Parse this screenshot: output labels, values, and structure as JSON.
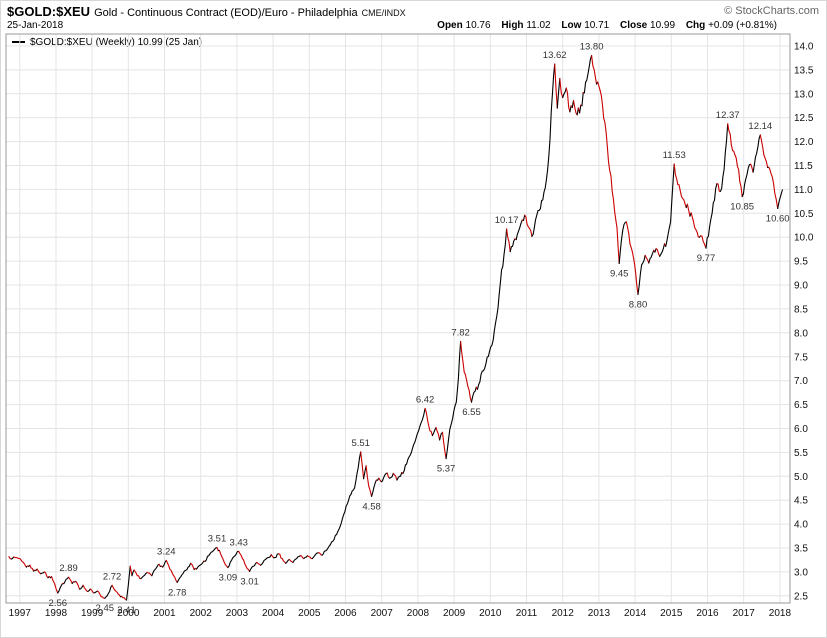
{
  "header": {
    "symbol": "$GOLD:$XEU",
    "description": "Gold - Continuous Contract (EOD)/Euro - Philadelphia",
    "exchange": "CME/INDX",
    "copyright": "© StockCharts.com",
    "date": "25-Jan-2018",
    "quote": {
      "open_label": "Open",
      "open": "10.76",
      "high_label": "High",
      "high": "11.02",
      "low_label": "Low",
      "low": "10.71",
      "close_label": "Close",
      "close": "10.99",
      "chg_label": "Chg",
      "chg": "+0.09 (+0.81%)"
    }
  },
  "legend": {
    "symbol_text": "$GOLD:$XEU (Weekly)",
    "value_text": "10.99 (25 Jan)"
  },
  "chart_data": {
    "type": "line",
    "title": "$GOLD:$XEU (Weekly) — Gold Continuous Contract (EOD) / Euro",
    "xlabel": "",
    "ylabel": "",
    "grid": true,
    "legend_position": "top-left",
    "x_domain": [
      1996.62,
      2018.28
    ],
    "y_domain": [
      2.35,
      14.25
    ],
    "x_ticks": [
      1997,
      1998,
      1999,
      2000,
      2001,
      2002,
      2003,
      2004,
      2005,
      2006,
      2007,
      2008,
      2009,
      2010,
      2011,
      2012,
      2013,
      2014,
      2015,
      2016,
      2017,
      2018
    ],
    "y_ticks": [
      14.0,
      13.5,
      13.0,
      12.5,
      12.0,
      11.5,
      11.0,
      10.5,
      10.0,
      9.5,
      9.0,
      8.5,
      8.0,
      7.5,
      7.0,
      6.5,
      6.0,
      5.5,
      5.0,
      4.5,
      4.0,
      3.5,
      3.0,
      2.5
    ],
    "colors": {
      "up": "#000000",
      "down": "#cc0000",
      "grid": "#e4e4e4",
      "border": "#999999",
      "annotation": "#333333",
      "axis_text": "#111111"
    },
    "series": [
      {
        "name": "$GOLD:$XEU",
        "points": [
          [
            1996.7,
            3.32
          ],
          [
            1996.8,
            3.28
          ],
          [
            1996.9,
            3.3
          ],
          [
            1997.0,
            3.28
          ],
          [
            1997.1,
            3.2
          ],
          [
            1997.18,
            3.1
          ],
          [
            1997.28,
            3.14
          ],
          [
            1997.38,
            3.02
          ],
          [
            1997.48,
            3.06
          ],
          [
            1997.58,
            2.96
          ],
          [
            1997.68,
            3.0
          ],
          [
            1997.78,
            2.88
          ],
          [
            1997.88,
            2.9
          ],
          [
            1997.96,
            2.76
          ],
          [
            1998.05,
            2.56
          ],
          [
            1998.15,
            2.72
          ],
          [
            1998.25,
            2.8
          ],
          [
            1998.35,
            2.89
          ],
          [
            1998.45,
            2.76
          ],
          [
            1998.55,
            2.8
          ],
          [
            1998.65,
            2.64
          ],
          [
            1998.75,
            2.72
          ],
          [
            1998.85,
            2.6
          ],
          [
            1998.95,
            2.64
          ],
          [
            1999.05,
            2.56
          ],
          [
            1999.15,
            2.6
          ],
          [
            1999.25,
            2.48
          ],
          [
            1999.35,
            2.45
          ],
          [
            1999.45,
            2.55
          ],
          [
            1999.55,
            2.72
          ],
          [
            1999.65,
            2.6
          ],
          [
            1999.75,
            2.52
          ],
          [
            1999.85,
            2.46
          ],
          [
            1999.95,
            2.41
          ],
          [
            2000.0,
            2.72
          ],
          [
            2000.05,
            3.12
          ],
          [
            2000.1,
            2.92
          ],
          [
            2000.16,
            3.04
          ],
          [
            2000.25,
            2.92
          ],
          [
            2000.35,
            2.86
          ],
          [
            2000.45,
            2.93
          ],
          [
            2000.55,
            2.98
          ],
          [
            2000.65,
            2.92
          ],
          [
            2000.75,
            3.06
          ],
          [
            2000.85,
            3.16
          ],
          [
            2000.95,
            3.1
          ],
          [
            2001.05,
            3.24
          ],
          [
            2001.15,
            3.05
          ],
          [
            2001.25,
            2.92
          ],
          [
            2001.35,
            2.78
          ],
          [
            2001.45,
            2.9
          ],
          [
            2001.55,
            3.02
          ],
          [
            2001.65,
            3.1
          ],
          [
            2001.72,
            3.18
          ],
          [
            2001.82,
            3.05
          ],
          [
            2001.92,
            3.1
          ],
          [
            2002.02,
            3.16
          ],
          [
            2002.12,
            3.22
          ],
          [
            2002.22,
            3.34
          ],
          [
            2002.32,
            3.42
          ],
          [
            2002.45,
            3.51
          ],
          [
            2002.55,
            3.38
          ],
          [
            2002.65,
            3.2
          ],
          [
            2002.75,
            3.09
          ],
          [
            2002.85,
            3.24
          ],
          [
            2002.95,
            3.34
          ],
          [
            2003.05,
            3.43
          ],
          [
            2003.15,
            3.28
          ],
          [
            2003.25,
            3.12
          ],
          [
            2003.35,
            3.01
          ],
          [
            2003.45,
            3.12
          ],
          [
            2003.55,
            3.2
          ],
          [
            2003.65,
            3.14
          ],
          [
            2003.75,
            3.24
          ],
          [
            2003.85,
            3.3
          ],
          [
            2003.95,
            3.36
          ],
          [
            2004.05,
            3.3
          ],
          [
            2004.15,
            3.38
          ],
          [
            2004.25,
            3.28
          ],
          [
            2004.35,
            3.18
          ],
          [
            2004.45,
            3.26
          ],
          [
            2004.55,
            3.2
          ],
          [
            2004.65,
            3.28
          ],
          [
            2004.75,
            3.34
          ],
          [
            2004.85,
            3.28
          ],
          [
            2004.95,
            3.34
          ],
          [
            2005.05,
            3.28
          ],
          [
            2005.15,
            3.34
          ],
          [
            2005.25,
            3.4
          ],
          [
            2005.35,
            3.35
          ],
          [
            2005.45,
            3.44
          ],
          [
            2005.55,
            3.54
          ],
          [
            2005.65,
            3.64
          ],
          [
            2005.75,
            3.78
          ],
          [
            2005.85,
            3.95
          ],
          [
            2005.95,
            4.2
          ],
          [
            2006.05,
            4.42
          ],
          [
            2006.15,
            4.62
          ],
          [
            2006.25,
            4.76
          ],
          [
            2006.35,
            5.18
          ],
          [
            2006.42,
            5.51
          ],
          [
            2006.5,
            4.95
          ],
          [
            2006.57,
            5.22
          ],
          [
            2006.64,
            4.8
          ],
          [
            2006.72,
            4.58
          ],
          [
            2006.82,
            4.86
          ],
          [
            2006.92,
            4.96
          ],
          [
            2007.02,
            4.9
          ],
          [
            2007.12,
            5.06
          ],
          [
            2007.22,
            4.96
          ],
          [
            2007.32,
            5.06
          ],
          [
            2007.42,
            4.92
          ],
          [
            2007.52,
            5.0
          ],
          [
            2007.62,
            5.12
          ],
          [
            2007.72,
            5.35
          ],
          [
            2007.82,
            5.5
          ],
          [
            2007.92,
            5.72
          ],
          [
            2008.02,
            5.95
          ],
          [
            2008.12,
            6.18
          ],
          [
            2008.2,
            6.42
          ],
          [
            2008.3,
            6.05
          ],
          [
            2008.4,
            5.85
          ],
          [
            2008.5,
            6.02
          ],
          [
            2008.6,
            5.76
          ],
          [
            2008.68,
            5.92
          ],
          [
            2008.78,
            5.37
          ],
          [
            2008.88,
            5.98
          ],
          [
            2008.96,
            6.22
          ],
          [
            2009.06,
            6.55
          ],
          [
            2009.12,
            7.05
          ],
          [
            2009.18,
            7.82
          ],
          [
            2009.28,
            7.18
          ],
          [
            2009.38,
            6.88
          ],
          [
            2009.48,
            6.55
          ],
          [
            2009.58,
            6.78
          ],
          [
            2009.68,
            6.92
          ],
          [
            2009.78,
            7.2
          ],
          [
            2009.88,
            7.36
          ],
          [
            2009.98,
            7.62
          ],
          [
            2010.08,
            7.85
          ],
          [
            2010.18,
            8.35
          ],
          [
            2010.28,
            9.05
          ],
          [
            2010.38,
            9.65
          ],
          [
            2010.45,
            10.17
          ],
          [
            2010.55,
            9.7
          ],
          [
            2010.65,
            9.92
          ],
          [
            2010.75,
            10.06
          ],
          [
            2010.85,
            10.3
          ],
          [
            2010.95,
            10.46
          ],
          [
            2011.05,
            10.22
          ],
          [
            2011.15,
            10.02
          ],
          [
            2011.25,
            10.36
          ],
          [
            2011.35,
            10.56
          ],
          [
            2011.45,
            10.78
          ],
          [
            2011.55,
            11.2
          ],
          [
            2011.65,
            12.05
          ],
          [
            2011.72,
            13.05
          ],
          [
            2011.78,
            13.62
          ],
          [
            2011.85,
            12.7
          ],
          [
            2011.92,
            13.32
          ],
          [
            2012.0,
            12.92
          ],
          [
            2012.1,
            13.12
          ],
          [
            2012.2,
            12.62
          ],
          [
            2012.3,
            12.86
          ],
          [
            2012.4,
            12.56
          ],
          [
            2012.5,
            12.76
          ],
          [
            2012.6,
            13.02
          ],
          [
            2012.7,
            13.42
          ],
          [
            2012.8,
            13.8
          ],
          [
            2012.9,
            13.36
          ],
          [
            2013.0,
            13.16
          ],
          [
            2013.1,
            12.76
          ],
          [
            2013.2,
            12.2
          ],
          [
            2013.3,
            11.4
          ],
          [
            2013.4,
            10.8
          ],
          [
            2013.5,
            10.2
          ],
          [
            2013.56,
            9.45
          ],
          [
            2013.66,
            10.15
          ],
          [
            2013.76,
            10.32
          ],
          [
            2013.86,
            9.86
          ],
          [
            2013.96,
            9.56
          ],
          [
            2014.02,
            9.22
          ],
          [
            2014.08,
            8.8
          ],
          [
            2014.18,
            9.42
          ],
          [
            2014.28,
            9.62
          ],
          [
            2014.38,
            9.46
          ],
          [
            2014.48,
            9.66
          ],
          [
            2014.58,
            9.76
          ],
          [
            2014.68,
            9.6
          ],
          [
            2014.78,
            9.76
          ],
          [
            2014.88,
            9.92
          ],
          [
            2014.98,
            10.32
          ],
          [
            2015.08,
            11.53
          ],
          [
            2015.18,
            11.1
          ],
          [
            2015.28,
            10.86
          ],
          [
            2015.38,
            10.7
          ],
          [
            2015.48,
            10.56
          ],
          [
            2015.58,
            10.42
          ],
          [
            2015.68,
            10.16
          ],
          [
            2015.78,
            10.0
          ],
          [
            2015.88,
            9.92
          ],
          [
            2015.96,
            9.77
          ],
          [
            2016.06,
            10.22
          ],
          [
            2016.16,
            10.72
          ],
          [
            2016.26,
            11.12
          ],
          [
            2016.36,
            10.96
          ],
          [
            2016.46,
            11.42
          ],
          [
            2016.56,
            12.37
          ],
          [
            2016.66,
            11.92
          ],
          [
            2016.76,
            11.72
          ],
          [
            2016.86,
            11.42
          ],
          [
            2016.96,
            10.85
          ],
          [
            2017.06,
            11.22
          ],
          [
            2017.16,
            11.52
          ],
          [
            2017.26,
            11.36
          ],
          [
            2017.36,
            11.76
          ],
          [
            2017.46,
            12.14
          ],
          [
            2017.56,
            11.72
          ],
          [
            2017.66,
            11.46
          ],
          [
            2017.76,
            11.32
          ],
          [
            2017.86,
            10.92
          ],
          [
            2017.94,
            10.6
          ],
          [
            2018.02,
            10.86
          ],
          [
            2018.07,
            10.99
          ]
        ]
      }
    ],
    "annotations": [
      {
        "x": 1998.05,
        "value": 2.56,
        "label": "2.56",
        "pos": "below"
      },
      {
        "x": 1998.35,
        "value": 2.89,
        "label": "2.89",
        "pos": "above"
      },
      {
        "x": 1999.35,
        "value": 2.45,
        "label": "2.45",
        "pos": "below"
      },
      {
        "x": 1999.55,
        "value": 2.72,
        "label": "2.72",
        "pos": "above"
      },
      {
        "x": 1999.95,
        "value": 2.41,
        "label": "2.41",
        "pos": "below"
      },
      {
        "x": 2001.05,
        "value": 3.24,
        "label": "3.24",
        "pos": "above"
      },
      {
        "x": 2001.35,
        "value": 2.78,
        "label": "2.78",
        "pos": "below"
      },
      {
        "x": 2002.45,
        "value": 3.51,
        "label": "3.51",
        "pos": "above"
      },
      {
        "x": 2002.75,
        "value": 3.09,
        "label": "3.09",
        "pos": "below"
      },
      {
        "x": 2003.05,
        "value": 3.43,
        "label": "3.43",
        "pos": "above"
      },
      {
        "x": 2003.35,
        "value": 3.01,
        "label": "3.01",
        "pos": "below"
      },
      {
        "x": 2006.42,
        "value": 5.51,
        "label": "5.51",
        "pos": "above"
      },
      {
        "x": 2006.72,
        "value": 4.58,
        "label": "4.58",
        "pos": "below"
      },
      {
        "x": 2008.2,
        "value": 6.42,
        "label": "6.42",
        "pos": "above"
      },
      {
        "x": 2008.78,
        "value": 5.37,
        "label": "5.37",
        "pos": "below"
      },
      {
        "x": 2009.18,
        "value": 7.82,
        "label": "7.82",
        "pos": "above"
      },
      {
        "x": 2009.48,
        "value": 6.55,
        "label": "6.55",
        "pos": "below"
      },
      {
        "x": 2010.45,
        "value": 10.17,
        "label": "10.17",
        "pos": "above"
      },
      {
        "x": 2011.78,
        "value": 13.62,
        "label": "13.62",
        "pos": "above"
      },
      {
        "x": 2012.8,
        "value": 13.8,
        "label": "13.80",
        "pos": "above"
      },
      {
        "x": 2013.56,
        "value": 9.45,
        "label": "9.45",
        "pos": "below"
      },
      {
        "x": 2014.08,
        "value": 8.8,
        "label": "8.80",
        "pos": "below"
      },
      {
        "x": 2015.08,
        "value": 11.53,
        "label": "11.53",
        "pos": "above"
      },
      {
        "x": 2015.96,
        "value": 9.77,
        "label": "9.77",
        "pos": "below"
      },
      {
        "x": 2016.56,
        "value": 12.37,
        "label": "12.37",
        "pos": "above"
      },
      {
        "x": 2016.96,
        "value": 10.85,
        "label": "10.85",
        "pos": "below"
      },
      {
        "x": 2017.46,
        "value": 12.14,
        "label": "12.14",
        "pos": "above"
      },
      {
        "x": 2017.94,
        "value": 10.6,
        "label": "10.60",
        "pos": "below"
      }
    ]
  }
}
